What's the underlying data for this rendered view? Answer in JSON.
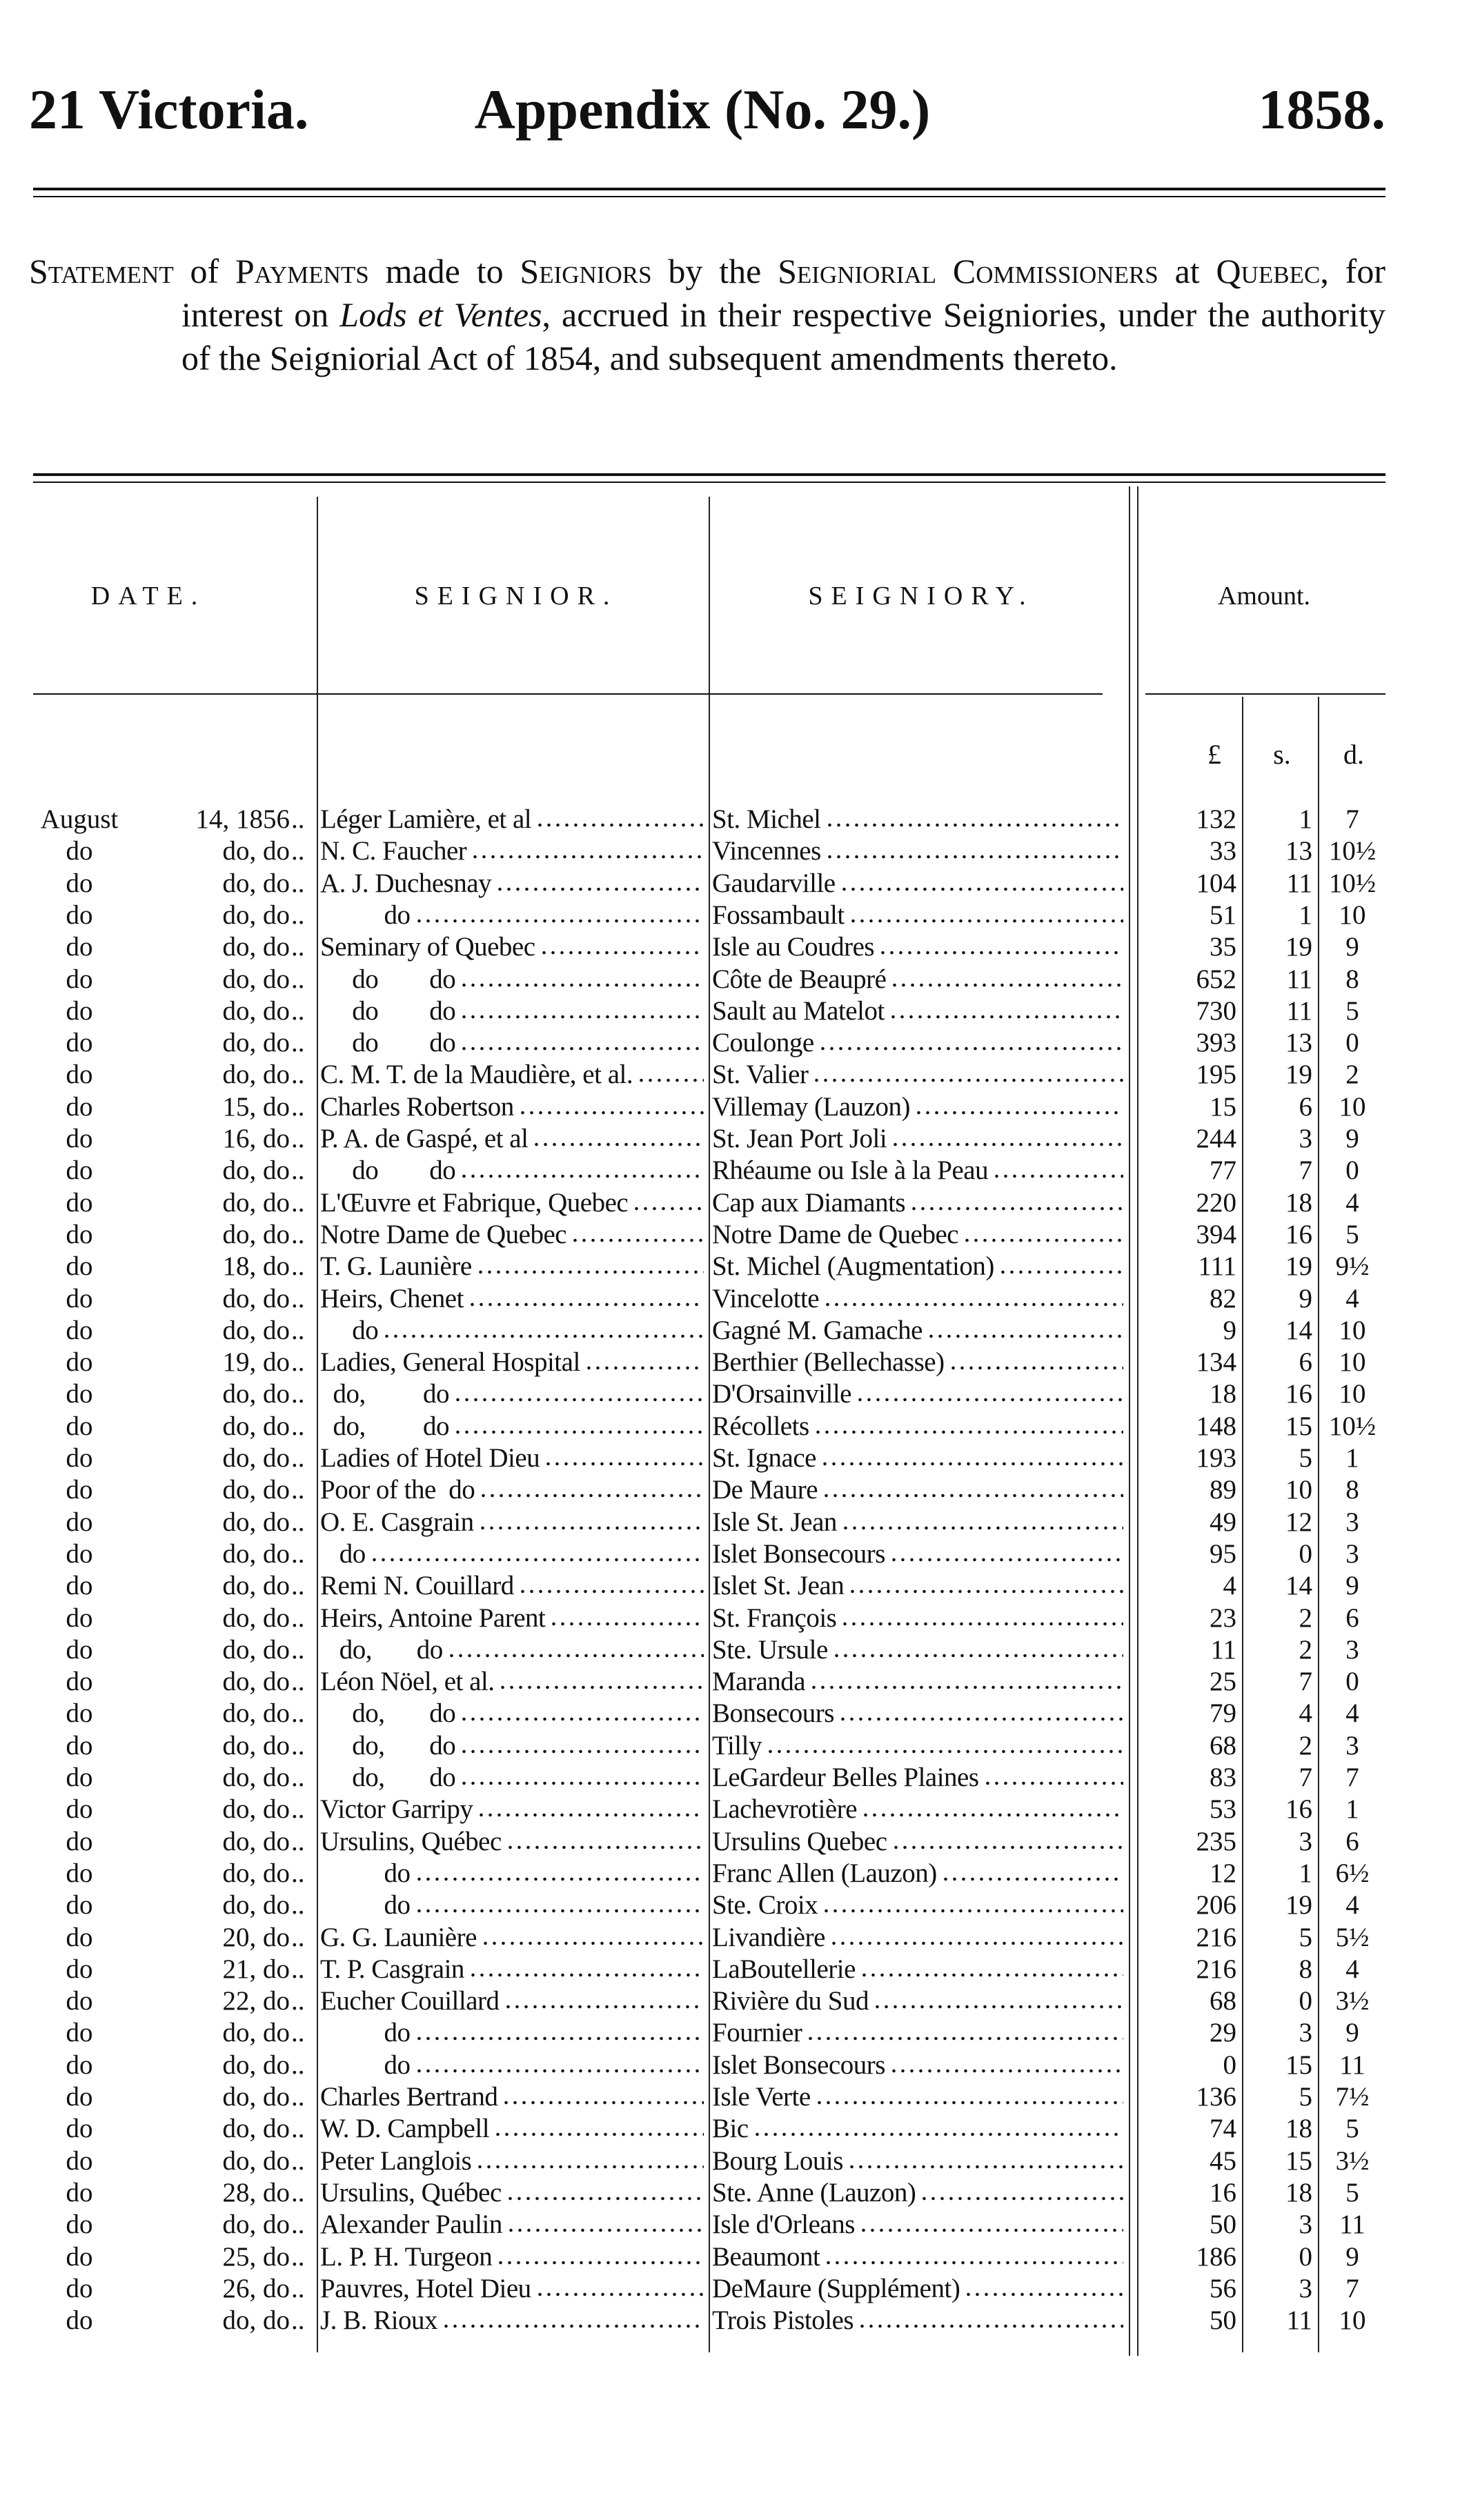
{
  "header": {
    "left": "21 Victoria.",
    "center": "Appendix (No. 29.)",
    "right": "1858."
  },
  "statement": {
    "p1": "Statement",
    "p2": " of ",
    "p3": "Payments",
    "p4": " made to ",
    "p5": "Seigniors",
    "p6": " by the ",
    "p7": "Seigniorial Commissioners",
    "p8": " at ",
    "p9": "Quebec",
    "p10": ", for interest on ",
    "p11": "Lods et Ventes",
    "p12": ", accrued in their respective Seigniories, under the authority of the Seigniorial Act of 1854, and subsequent amendments thereto."
  },
  "table": {
    "headers": {
      "date": "DATE.",
      "seignior": "SEIGNIOR.",
      "seigniory": "SEIGNIORY.",
      "amount": "Amount."
    },
    "units": {
      "pounds": "£",
      "shillings": "s.",
      "pence": "d."
    },
    "rows": [
      [
        "August",
        "14, 1856",
        "Léger Lamière, et al",
        "St. Michel",
        "132",
        "1",
        "7"
      ],
      [
        "do",
        "do, do",
        "N. C. Faucher",
        "Vincennes",
        "33",
        "13",
        "10½"
      ],
      [
        "do",
        "do, do",
        "A. J. Duchesnay",
        "Gaudarville",
        "104",
        "11",
        "10½"
      ],
      [
        "do",
        "do, do",
        "          do",
        "Fossambault",
        "51",
        "1",
        "10"
      ],
      [
        "do",
        "do, do",
        "Seminary of Quebec",
        "Isle au Coudres",
        "35",
        "19",
        "9"
      ],
      [
        "do",
        "do, do",
        "     do        do",
        "Côte de Beaupré",
        "652",
        "11",
        "8"
      ],
      [
        "do",
        "do, do",
        "     do        do",
        "Sault au Matelot",
        "730",
        "11",
        "5"
      ],
      [
        "do",
        "do, do",
        "     do        do",
        "Coulonge",
        "393",
        "13",
        "0"
      ],
      [
        "do",
        "do, do",
        "C. M. T. de la Maudière, et al.",
        "St. Valier",
        "195",
        "19",
        "2"
      ],
      [
        "do",
        "15, do",
        "Charles Robertson",
        "Villemay (Lauzon)",
        "15",
        "6",
        "10"
      ],
      [
        "do",
        "16, do",
        "P. A. de Gaspé, et al",
        "St. Jean Port Joli",
        "244",
        "3",
        "9"
      ],
      [
        "do",
        "do, do",
        "     do        do",
        "Rhéaume ou Isle à la Peau",
        "77",
        "7",
        "0"
      ],
      [
        "do",
        "do, do",
        "L'Œuvre et Fabrique, Quebec",
        "Cap aux Diamants",
        "220",
        "18",
        "4"
      ],
      [
        "do",
        "do, do",
        "Notre Dame de Quebec",
        "Notre Dame de Quebec",
        "394",
        "16",
        "5"
      ],
      [
        "do",
        "18, do",
        "T. G. Launière",
        "St. Michel (Augmentation)",
        "111",
        "19",
        "9½"
      ],
      [
        "do",
        "do, do",
        "Heirs, Chenet",
        "Vincelotte",
        "82",
        "9",
        "4"
      ],
      [
        "do",
        "do, do",
        "     do",
        "Gagné M. Gamache",
        "9",
        "14",
        "10"
      ],
      [
        "do",
        "19, do",
        "Ladies, General Hospital",
        "Berthier (Bellechasse)",
        "134",
        "6",
        "10"
      ],
      [
        "do",
        "do, do",
        "  do,         do",
        "D'Orsainville",
        "18",
        "16",
        "10"
      ],
      [
        "do",
        "do, do",
        "  do,         do",
        "Récollets",
        "148",
        "15",
        "10½"
      ],
      [
        "do",
        "do, do",
        "Ladies of Hotel Dieu",
        "St. Ignace",
        "193",
        "5",
        "1"
      ],
      [
        "do",
        "do, do",
        "Poor of the  do",
        "De Maure",
        "89",
        "10",
        "8"
      ],
      [
        "do",
        "do, do",
        "O. E. Casgrain",
        "Isle St. Jean",
        "49",
        "12",
        "3"
      ],
      [
        "do",
        "do, do",
        "   do",
        "Islet Bonsecours",
        "95",
        "0",
        "3"
      ],
      [
        "do",
        "do, do",
        "Remi N. Couillard",
        "Islet St. Jean",
        "4",
        "14",
        "9"
      ],
      [
        "do",
        "do, do",
        "Heirs, Antoine Parent",
        "St. François",
        "23",
        "2",
        "6"
      ],
      [
        "do",
        "do, do",
        "   do,       do",
        "Ste. Ursule",
        "11",
        "2",
        "3"
      ],
      [
        "do",
        "do, do",
        "Léon Nöel, et al.",
        "Maranda",
        "25",
        "7",
        "0"
      ],
      [
        "do",
        "do, do",
        "     do,       do",
        "Bonsecours",
        "79",
        "4",
        "4"
      ],
      [
        "do",
        "do, do",
        "     do,       do",
        "Tilly",
        "68",
        "2",
        "3"
      ],
      [
        "do",
        "do, do",
        "     do,       do",
        "LeGardeur Belles Plaines",
        "83",
        "7",
        "7"
      ],
      [
        "do",
        "do, do",
        "Victor Garripy",
        "Lachevrotière",
        "53",
        "16",
        "1"
      ],
      [
        "do",
        "do, do",
        "Ursulins, Québec",
        "Ursulins Quebec",
        "235",
        "3",
        "6"
      ],
      [
        "do",
        "do, do",
        "          do",
        "Franc Allen (Lauzon)",
        "12",
        "1",
        "6½"
      ],
      [
        "do",
        "do, do",
        "          do",
        "Ste. Croix",
        "206",
        "19",
        "4"
      ],
      [
        "do",
        "20, do",
        "G. G. Launière",
        "Livandière",
        "216",
        "5",
        "5½"
      ],
      [
        "do",
        "21, do",
        "T. P. Casgrain",
        "LaBoutellerie",
        "216",
        "8",
        "4"
      ],
      [
        "do",
        "22, do",
        "Eucher Couillard",
        "Rivière du Sud",
        "68",
        "0",
        "3½"
      ],
      [
        "do",
        "do, do",
        "          do",
        "Fournier",
        "29",
        "3",
        "9"
      ],
      [
        "do",
        "do, do",
        "          do",
        "Islet Bonsecours",
        "0",
        "15",
        "11"
      ],
      [
        "do",
        "do, do",
        "Charles Bertrand",
        "Isle Verte",
        "136",
        "5",
        "7½"
      ],
      [
        "do",
        "do, do",
        "W. D. Campbell",
        "Bic",
        "74",
        "18",
        "5"
      ],
      [
        "do",
        "do, do",
        "Peter Langlois",
        "Bourg Louis",
        "45",
        "15",
        "3½"
      ],
      [
        "do",
        "28, do",
        "Ursulins, Québec",
        "Ste. Anne (Lauzon)",
        "16",
        "18",
        "5"
      ],
      [
        "do",
        "do, do",
        "Alexander Paulin",
        "Isle d'Orleans",
        "50",
        "3",
        "11"
      ],
      [
        "do",
        "25, do",
        "L. P. H. Turgeon",
        "Beaumont",
        "186",
        "0",
        "9"
      ],
      [
        "do",
        "26, do",
        "Pauvres, Hotel Dieu",
        "DeMaure (Supplément)",
        "56",
        "3",
        "7"
      ],
      [
        "do",
        "do, do",
        "J. B. Rioux",
        "Trois Pistoles",
        "50",
        "11",
        "10"
      ]
    ]
  }
}
